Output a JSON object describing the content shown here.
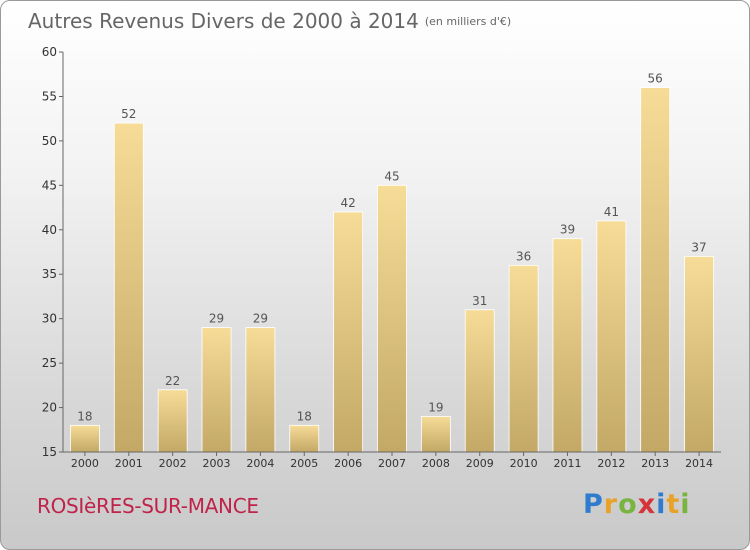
{
  "title": "Autres Revenus Divers de 2000 à 2014",
  "title_unit": "(en milliers d'€)",
  "commune": "ROSIèRES-SUR-MANCE",
  "logo": [
    "P",
    "r",
    "o",
    "x",
    "i",
    "t",
    "i"
  ],
  "colors": {
    "bar_light": "#f6dc97",
    "bar_dark": "#c3a866",
    "axis": "#666666",
    "text": "#555555",
    "accent": "#c0234a"
  },
  "chart_data": {
    "type": "bar",
    "title": "Autres Revenus Divers de 2000 à 2014",
    "subtitle": "(en milliers d'€)",
    "xlabel": "",
    "ylabel": "",
    "categories": [
      "2000",
      "2001",
      "2002",
      "2003",
      "2004",
      "2005",
      "2006",
      "2007",
      "2008",
      "2009",
      "2010",
      "2011",
      "2012",
      "2013",
      "2014"
    ],
    "values": [
      18,
      52,
      22,
      29,
      29,
      18,
      42,
      45,
      19,
      31,
      36,
      39,
      41,
      56,
      37
    ],
    "ylim": [
      15,
      60
    ],
    "yticks": [
      15,
      20,
      25,
      30,
      35,
      40,
      45,
      50,
      55,
      60
    ],
    "grid": false,
    "legend": "none"
  }
}
